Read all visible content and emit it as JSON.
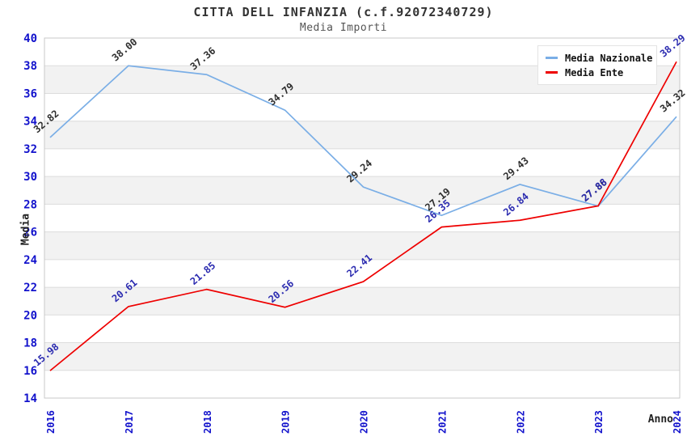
{
  "chart_data": {
    "type": "line",
    "title": "CITTA DELL INFANZIA (c.f.92072340729)",
    "subtitle": "Media Importi",
    "xlabel": "Anno",
    "ylabel": "Media",
    "categories": [
      "2016",
      "2017",
      "2018",
      "2019",
      "2020",
      "2021",
      "2022",
      "2023",
      "2024"
    ],
    "series": [
      {
        "name": "Media Nazionale",
        "color": "#7aaee6",
        "label_color": "#2e2e2e",
        "values": [
          32.82,
          38.0,
          37.36,
          34.79,
          29.24,
          27.19,
          29.43,
          27.86,
          34.32
        ]
      },
      {
        "name": "Media Ente",
        "color": "#ee0000",
        "label_color": "#2b2bb0",
        "values": [
          15.98,
          20.61,
          21.85,
          20.56,
          22.41,
          26.35,
          26.84,
          27.88,
          38.29
        ]
      }
    ],
    "ylim": [
      14,
      40
    ],
    "ytick_step": 2,
    "axis_label_color": "#1212cc",
    "grid": {
      "band_colors": [
        "#ffffff",
        "#f2f2f2"
      ],
      "line_color": "#dcdcdc",
      "border_color": "#c8c8c8"
    },
    "legend_position": "top-right"
  }
}
